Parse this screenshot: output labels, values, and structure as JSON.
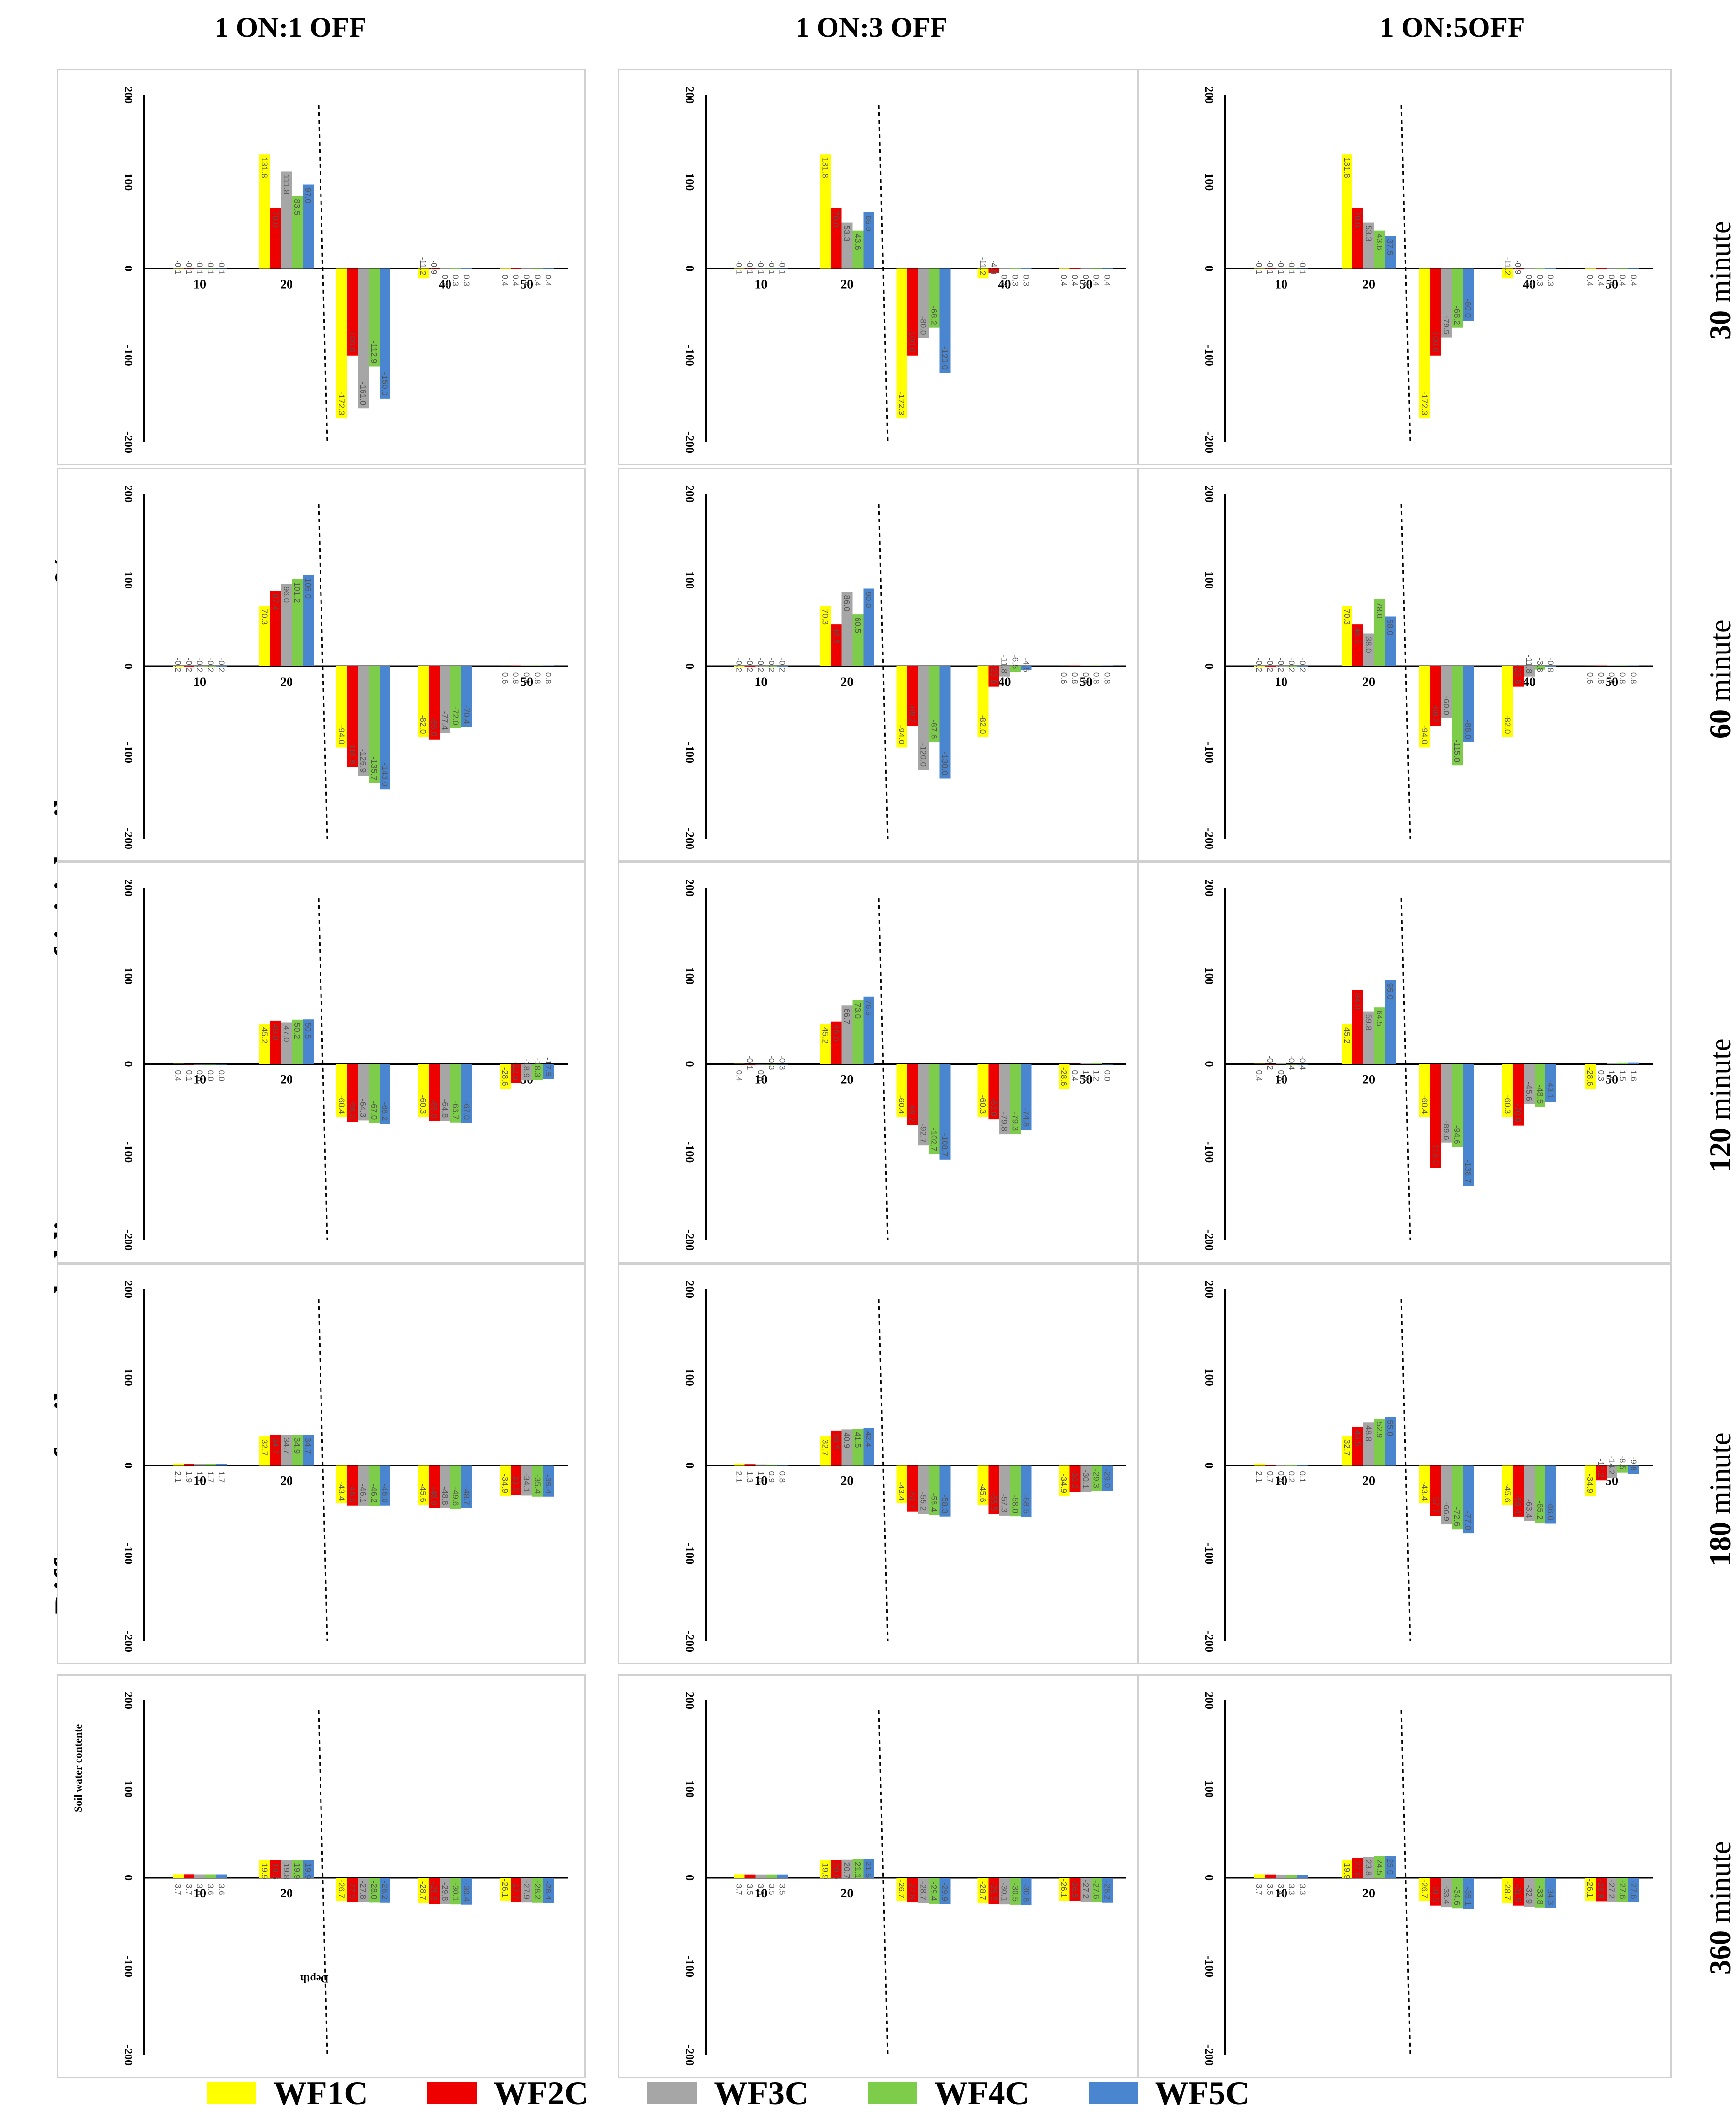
{
  "figure": {
    "y_axis_title": "Different of soil water holding as percentage of initial soil water content %",
    "columns": [
      "1 ON:1 OFF",
      "1 ON:3 OFF",
      "1 ON:5OFF"
    ],
    "rows": [
      {
        "num": "30",
        "unit": "minute"
      },
      {
        "num": "60",
        "unit": "minute"
      },
      {
        "num": "120",
        "unit": "minute"
      },
      {
        "num": "180",
        "unit": "minute"
      },
      {
        "num": "360",
        "unit": "minute"
      }
    ],
    "small_labels": {
      "y": "Soil water contente",
      "x": "Depth"
    }
  },
  "colors": {
    "WF1C": "#ffff00",
    "WF2C": "#ee0000",
    "WF3C": "#a6a6a6",
    "WF4C": "#7dcc4a",
    "WF5C": "#4a86d0"
  },
  "legend": [
    "WF1C",
    "WF2C",
    "WF3C",
    "WF4C",
    "WF5C"
  ],
  "chart_data": [
    {
      "type": "bar",
      "panel": "1ON1OFF-30",
      "categories": [
        "10",
        "20",
        "30",
        "40",
        "50"
      ],
      "ylim": [
        -200,
        200
      ],
      "yticks": [
        200,
        100,
        0,
        -100,
        -200
      ],
      "series": [
        {
          "name": "WF1C",
          "values": [
            -0.1,
            131.8,
            -172.3,
            -11.2,
            0.4
          ]
        },
        {
          "name": "WF2C",
          "values": [
            -0.1,
            70,
            -100,
            -0.9,
            0.4
          ]
        },
        {
          "name": "WF3C",
          "values": [
            -0.1,
            111.8,
            -161.0,
            0.2,
            0.4
          ]
        },
        {
          "name": "WF4C",
          "values": [
            -0.1,
            83.5,
            -112.9,
            0.3,
            0.4
          ]
        },
        {
          "name": "WF5C",
          "values": [
            -0.1,
            97,
            -150,
            0.3,
            0.4
          ]
        }
      ]
    },
    {
      "type": "bar",
      "panel": "1ON3OFF-30",
      "categories": [
        "10",
        "20",
        "30",
        "40",
        "50"
      ],
      "ylim": [
        -200,
        200
      ],
      "yticks": [
        200,
        100,
        0,
        -100,
        -200
      ],
      "series": [
        {
          "name": "WF1C",
          "values": [
            -0.1,
            131.8,
            -172.3,
            -11.2,
            0.4
          ]
        },
        {
          "name": "WF2C",
          "values": [
            -0.1,
            70,
            -100,
            -4.8,
            0.4
          ]
        },
        {
          "name": "WF3C",
          "values": [
            -0.1,
            53.3,
            -80,
            0.2,
            0.4
          ]
        },
        {
          "name": "WF4C",
          "values": [
            -0.1,
            43.6,
            -68.2,
            0.3,
            0.4
          ]
        },
        {
          "name": "WF5C",
          "values": [
            -0.1,
            65,
            -120,
            0.3,
            0.4
          ]
        }
      ]
    },
    {
      "type": "bar",
      "panel": "1ON5OFF-30",
      "categories": [
        "10",
        "20",
        "30",
        "40",
        "50"
      ],
      "ylim": [
        -200,
        200
      ],
      "yticks": [
        200,
        100,
        0,
        -100,
        -200
      ],
      "series": [
        {
          "name": "WF1C",
          "values": [
            -0.1,
            131.8,
            -172.3,
            -11.2,
            0.4
          ]
        },
        {
          "name": "WF2C",
          "values": [
            -0.1,
            70,
            -100,
            -0.9,
            0.4
          ]
        },
        {
          "name": "WF3C",
          "values": [
            -0.1,
            53.3,
            -79.5,
            0.2,
            0.4
          ]
        },
        {
          "name": "WF4C",
          "values": [
            -0.1,
            43.6,
            -68.2,
            0.3,
            0.4
          ]
        },
        {
          "name": "WF5C",
          "values": [
            -0.1,
            37.5,
            -60,
            0.3,
            0.4
          ]
        }
      ]
    },
    {
      "type": "bar",
      "panel": "1ON1OFF-60",
      "categories": [
        "10",
        "20",
        "30",
        "40",
        "50"
      ],
      "ylim": [
        -200,
        200
      ],
      "yticks": [
        200,
        100,
        0,
        -100,
        -200
      ],
      "series": [
        {
          "name": "WF1C",
          "values": [
            -0.2,
            70.3,
            -94.0,
            -82.0,
            0.6
          ]
        },
        {
          "name": "WF2C",
          "values": [
            -0.2,
            87.4,
            -116.9,
            -85.0,
            0.8
          ]
        },
        {
          "name": "WF3C",
          "values": [
            -0.2,
            96,
            -126.9,
            -77.4,
            0.8
          ]
        },
        {
          "name": "WF4C",
          "values": [
            -0.2,
            101.2,
            -135.7,
            -72.0,
            0.8
          ]
        },
        {
          "name": "WF5C",
          "values": [
            -0.2,
            106,
            -143,
            -70.4,
            0.8
          ]
        }
      ]
    },
    {
      "type": "bar",
      "panel": "1ON3OFF-60",
      "categories": [
        "10",
        "20",
        "30",
        "40",
        "50"
      ],
      "ylim": [
        -200,
        200
      ],
      "yticks": [
        200,
        100,
        0,
        -100,
        -200
      ],
      "series": [
        {
          "name": "WF1C",
          "values": [
            -0.2,
            70.3,
            -94.0,
            -82.0,
            0.6
          ]
        },
        {
          "name": "WF2C",
          "values": [
            -0.2,
            48.5,
            -69.2,
            -23.8,
            0.8
          ]
        },
        {
          "name": "WF3C",
          "values": [
            -0.2,
            86,
            -120,
            -11.8,
            0.8
          ]
        },
        {
          "name": "WF4C",
          "values": [
            -0.2,
            60.5,
            -87.6,
            -6.5,
            0.8
          ]
        },
        {
          "name": "WF5C",
          "values": [
            -0.2,
            90,
            -130,
            -4.5,
            0.8
          ]
        }
      ]
    },
    {
      "type": "bar",
      "panel": "1ON5OFF-60",
      "categories": [
        "10",
        "20",
        "30",
        "40",
        "50"
      ],
      "ylim": [
        -200,
        200
      ],
      "yticks": [
        200,
        100,
        0,
        -100,
        -200
      ],
      "series": [
        {
          "name": "WF1C",
          "values": [
            -0.2,
            70.3,
            -94.0,
            -82.0,
            0.6
          ]
        },
        {
          "name": "WF2C",
          "values": [
            -0.2,
            48.5,
            -69.2,
            -23.8,
            0.8
          ]
        },
        {
          "name": "WF3C",
          "values": [
            -0.2,
            38,
            -60,
            -11.8,
            0.8
          ]
        },
        {
          "name": "WF4C",
          "values": [
            -0.2,
            78,
            -115,
            -3.8,
            0.8
          ]
        },
        {
          "name": "WF5C",
          "values": [
            -0.2,
            58,
            -88,
            -0.8,
            0.8
          ]
        }
      ]
    },
    {
      "type": "bar",
      "panel": "1ON1OFF-120",
      "categories": [
        "10",
        "20",
        "30",
        "40",
        "50"
      ],
      "ylim": [
        -200,
        200
      ],
      "yticks": [
        200,
        100,
        0,
        -100,
        -200
      ],
      "series": [
        {
          "name": "WF1C",
          "values": [
            0.4,
            45.2,
            -60.4,
            -60.3,
            -28.6
          ]
        },
        {
          "name": "WF2C",
          "values": [
            0.1,
            49,
            -66,
            -65,
            -22
          ]
        },
        {
          "name": "WF3C",
          "values": [
            0.0,
            47.0,
            -64.3,
            -64.8,
            -18.9
          ]
        },
        {
          "name": "WF4C",
          "values": [
            0.0,
            50.2,
            -67,
            -66.7,
            -18.3
          ]
        },
        {
          "name": "WF5C",
          "values": [
            0.0,
            50.5,
            -68.2,
            -67.0,
            -17.5
          ]
        }
      ]
    },
    {
      "type": "bar",
      "panel": "1ON3OFF-120",
      "categories": [
        "10",
        "20",
        "30",
        "40",
        "50"
      ],
      "ylim": [
        -200,
        200
      ],
      "yticks": [
        200,
        100,
        0,
        -100,
        -200
      ],
      "series": [
        {
          "name": "WF1C",
          "values": [
            0.4,
            45.2,
            -60.4,
            -60.3,
            -28.6
          ]
        },
        {
          "name": "WF2C",
          "values": [
            -0.1,
            48,
            -69.2,
            -63,
            0.4
          ]
        },
        {
          "name": "WF3C",
          "values": [
            0.0,
            66.7,
            -92.7,
            -79.8,
            1.0
          ]
        },
        {
          "name": "WF4C",
          "values": [
            -0.3,
            73.0,
            -102.7,
            -79.3,
            1.2
          ]
        },
        {
          "name": "WF5C",
          "values": [
            -0.3,
            76.5,
            -108.7,
            -74.8,
            0.0
          ]
        }
      ]
    },
    {
      "type": "bar",
      "panel": "1ON5OFF-120",
      "categories": [
        "10",
        "20",
        "30",
        "40",
        "50"
      ],
      "ylim": [
        -200,
        200
      ],
      "yticks": [
        200,
        100,
        0,
        -100,
        -200
      ],
      "series": [
        {
          "name": "WF1C",
          "values": [
            0.4,
            45.2,
            -60.4,
            -60.3,
            -28.6
          ]
        },
        {
          "name": "WF2C",
          "values": [
            -0.2,
            84,
            -118,
            -70,
            0.3
          ]
        },
        {
          "name": "WF3C",
          "values": [
            0.8,
            59.8,
            -89.6,
            -45.6,
            1.4
          ]
        },
        {
          "name": "WF4C",
          "values": [
            -0.4,
            64.5,
            -94.6,
            -48.5,
            1.5
          ]
        },
        {
          "name": "WF5C",
          "values": [
            -0.4,
            95,
            -138.7,
            -43.1,
            1.6
          ]
        }
      ]
    },
    {
      "type": "bar",
      "panel": "1ON1OFF-180",
      "categories": [
        "10",
        "20",
        "30",
        "40",
        "50"
      ],
      "ylim": [
        -200,
        200
      ],
      "yticks": [
        200,
        100,
        0,
        -100,
        -200
      ],
      "series": [
        {
          "name": "WF1C",
          "values": [
            2.1,
            32.7,
            -43.4,
            -45.6,
            -34.9
          ]
        },
        {
          "name": "WF2C",
          "values": [
            1.9,
            34.7,
            -46.0,
            -48.9,
            -33.5
          ]
        },
        {
          "name": "WF3C",
          "values": [
            1.7,
            34.7,
            -46.1,
            -48.8,
            -34.1
          ]
        },
        {
          "name": "WF4C",
          "values": [
            1.7,
            34.9,
            -46.2,
            -49.6,
            -35.4
          ]
        },
        {
          "name": "WF5C",
          "values": [
            1.7,
            34.7,
            -46.0,
            -48.7,
            -35.4
          ]
        }
      ]
    },
    {
      "type": "bar",
      "panel": "1ON3OFF-180",
      "categories": [
        "10",
        "20",
        "30",
        "40",
        "50"
      ],
      "ylim": [
        -200,
        200
      ],
      "yticks": [
        200,
        100,
        0,
        -100,
        -200
      ],
      "series": [
        {
          "name": "WF1C",
          "values": [
            2.1,
            32.7,
            -43.4,
            -45.6,
            -34.9
          ]
        },
        {
          "name": "WF2C",
          "values": [
            1.3,
            39.5,
            -52.7,
            -55.5,
            -30.2
          ]
        },
        {
          "name": "WF3C",
          "values": [
            1.0,
            40.9,
            -55.2,
            -57.3,
            -30.1
          ]
        },
        {
          "name": "WF4C",
          "values": [
            0.9,
            41.5,
            -56.4,
            -58.0,
            -29.3
          ]
        },
        {
          "name": "WF5C",
          "values": [
            0.8,
            42.4,
            -58.3,
            -58.5,
            -29.0
          ]
        }
      ]
    },
    {
      "type": "bar",
      "panel": "1ON5OFF-180",
      "categories": [
        "10",
        "20",
        "30",
        "40",
        "50"
      ],
      "ylim": [
        -200,
        200
      ],
      "yticks": [
        200,
        100,
        0,
        -100,
        -200
      ],
      "series": [
        {
          "name": "WF1C",
          "values": [
            2.1,
            32.7,
            -43.4,
            -45.6,
            -34.9
          ]
        },
        {
          "name": "WF2C",
          "values": [
            0.7,
            43.5,
            -57.7,
            -58.4,
            -17.2
          ]
        },
        {
          "name": "WF3C",
          "values": [
            0.4,
            48.8,
            -66.9,
            -63.4,
            -14.2
          ]
        },
        {
          "name": "WF4C",
          "values": [
            0.2,
            52.9,
            -72.6,
            -65.2,
            -8.5
          ]
        },
        {
          "name": "WF5C",
          "values": [
            0.1,
            55.0,
            -77.0,
            -66.0,
            -9.8
          ]
        }
      ]
    },
    {
      "type": "bar",
      "panel": "1ON1OFF-360",
      "categories": [
        "10",
        "20",
        "30",
        "40",
        "50"
      ],
      "ylim": [
        -200,
        200
      ],
      "yticks": [
        200,
        100,
        0,
        -100,
        -200
      ],
      "series": [
        {
          "name": "WF1C",
          "values": [
            3.7,
            19.9,
            -26.7,
            -28.7,
            -26.1
          ]
        },
        {
          "name": "WF2C",
          "values": [
            3.7,
            19.6,
            -27.5,
            -29.5,
            -27.7
          ]
        },
        {
          "name": "WF3C",
          "values": [
            3.6,
            19.8,
            -27.8,
            -29.8,
            -27.9
          ]
        },
        {
          "name": "WF4C",
          "values": [
            3.6,
            19.9,
            -28.0,
            -30.1,
            -28.2
          ]
        },
        {
          "name": "WF5C",
          "values": [
            3.6,
            19.9,
            -28.2,
            -30.4,
            -28.4
          ]
        }
      ]
    },
    {
      "type": "bar",
      "panel": "1ON3OFF-360",
      "categories": [
        "10",
        "20",
        "30",
        "40",
        "50"
      ],
      "ylim": [
        -200,
        200
      ],
      "yticks": [
        200,
        100,
        0,
        -100,
        -200
      ],
      "series": [
        {
          "name": "WF1C",
          "values": [
            3.7,
            19.9,
            -26.7,
            -28.7,
            -26.1
          ]
        },
        {
          "name": "WF2C",
          "values": [
            3.5,
            20.0,
            -27.8,
            -29.5,
            -26.5
          ]
        },
        {
          "name": "WF3C",
          "values": [
            3.5,
            20.7,
            -28.7,
            -30.1,
            -27.2
          ]
        },
        {
          "name": "WF4C",
          "values": [
            3.5,
            21.1,
            -29.4,
            -30.5,
            -27.6
          ]
        },
        {
          "name": "WF5C",
          "values": [
            3.5,
            21.5,
            -29.9,
            -30.8,
            -28.2
          ]
        }
      ]
    },
    {
      "type": "bar",
      "panel": "1ON5OFF-360",
      "categories": [
        "10",
        "20",
        "30",
        "40",
        "50"
      ],
      "ylim": [
        -200,
        200
      ],
      "yticks": [
        200,
        100,
        0,
        -100,
        -200
      ],
      "series": [
        {
          "name": "WF1C",
          "values": [
            3.7,
            19.9,
            -26.7,
            -28.7,
            -26.1
          ]
        },
        {
          "name": "WF2C",
          "values": [
            3.5,
            22.6,
            -31.5,
            -31.5,
            -26.9
          ]
        },
        {
          "name": "WF3C",
          "values": [
            3.4,
            23.8,
            -33.4,
            -32.9,
            -27.2
          ]
        },
        {
          "name": "WF4C",
          "values": [
            3.3,
            24.5,
            -34.6,
            -33.8,
            -27.6
          ]
        },
        {
          "name": "WF5C",
          "values": [
            3.3,
            25.0,
            -35.1,
            -34.3,
            -27.6
          ]
        }
      ]
    }
  ]
}
